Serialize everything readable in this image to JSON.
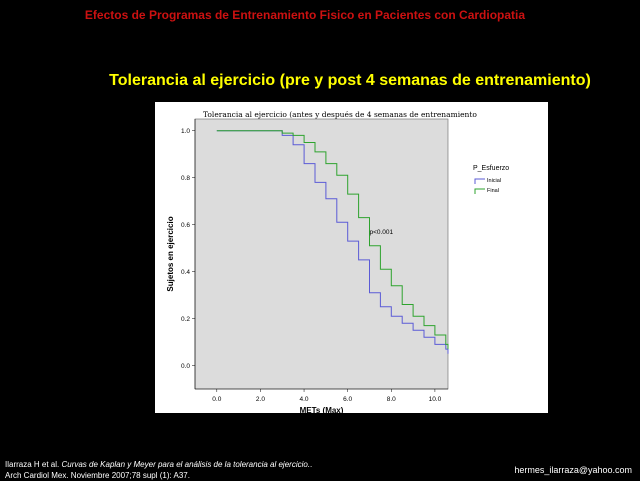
{
  "slide": {
    "header": "Efectos de Programas de Entrenamiento Fisico en Pacientes con Cardiopatia",
    "subtitle": "Tolerancia al ejercicio (pre y post 4 semanas de entrenamiento)",
    "citation_line1_prefix": "Ilarraza H et al. ",
    "citation_line1_title": "Curvas de Kaplan y Meyer para el análisis de la tolerancia al ejercicio.",
    "citation_line1_suffix": ".",
    "citation_line2": "Arch Cardiol Mex. Noviembre 2007;78 supl (1): A37.",
    "email": "hermes_ilarraza@yahoo.com"
  },
  "colors": {
    "background": "#000000",
    "header": "#cc1111",
    "subtitle": "#ffff00",
    "plot_background": "#dcdcdc",
    "series_inicial": "#5b5bd6",
    "series_final": "#2ea32e"
  },
  "chart_data": {
    "type": "line",
    "title": "Tolerancia al ejercicio (antes y después de 4 semanas de entrenamiento",
    "xlabel": "METs (Max)",
    "ylabel": "Sujetos en ejercicio",
    "xlim": [
      -1.0,
      10.6
    ],
    "ylim": [
      -0.1,
      1.05
    ],
    "x_ticks": [
      "0.0",
      "2.0",
      "4.0",
      "6.0",
      "8.0",
      "10.0"
    ],
    "y_ticks": [
      "0.0",
      "0.2",
      "0.4",
      "0.6",
      "0.8",
      "1.0"
    ],
    "grid": false,
    "legend_title": "P_Esfuerzo",
    "legend_position": "right",
    "annotation": "p<0.001",
    "series": [
      {
        "name": "Inicial",
        "color": "#5b5bd6",
        "points": [
          [
            0,
            1.0
          ],
          [
            2.5,
            1.0
          ],
          [
            3.0,
            0.98
          ],
          [
            3.5,
            0.94
          ],
          [
            4.0,
            0.86
          ],
          [
            4.5,
            0.78
          ],
          [
            5.0,
            0.71
          ],
          [
            5.5,
            0.61
          ],
          [
            6.0,
            0.53
          ],
          [
            6.5,
            0.45
          ],
          [
            7.0,
            0.31
          ],
          [
            7.5,
            0.25
          ],
          [
            8.0,
            0.21
          ],
          [
            8.5,
            0.18
          ],
          [
            9.0,
            0.15
          ],
          [
            9.5,
            0.12
          ],
          [
            10.0,
            0.09
          ],
          [
            10.5,
            0.07
          ],
          [
            10.6,
            0.05
          ]
        ]
      },
      {
        "name": "Final",
        "color": "#2ea32e",
        "points": [
          [
            0,
            1.0
          ],
          [
            2.5,
            1.0
          ],
          [
            3.0,
            0.99
          ],
          [
            3.5,
            0.98
          ],
          [
            4.0,
            0.95
          ],
          [
            4.5,
            0.91
          ],
          [
            5.0,
            0.86
          ],
          [
            5.5,
            0.81
          ],
          [
            6.0,
            0.73
          ],
          [
            6.5,
            0.63
          ],
          [
            7.0,
            0.51
          ],
          [
            7.5,
            0.41
          ],
          [
            8.0,
            0.34
          ],
          [
            8.5,
            0.26
          ],
          [
            9.0,
            0.21
          ],
          [
            9.5,
            0.17
          ],
          [
            10.0,
            0.13
          ],
          [
            10.5,
            0.09
          ],
          [
            10.6,
            0.07
          ]
        ]
      }
    ]
  }
}
